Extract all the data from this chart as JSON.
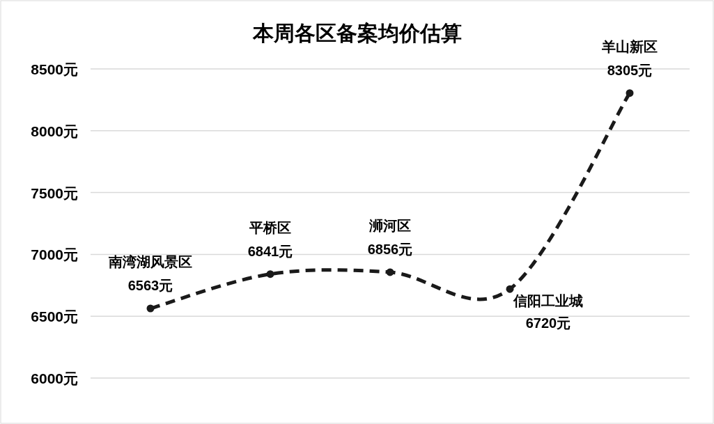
{
  "chart_data": {
    "type": "line",
    "title": "本周各区备案均价估算",
    "categories": [
      "南湾湖风景区",
      "平桥区",
      "浉河区",
      "信阳工业城",
      "羊山新区"
    ],
    "series": [
      {
        "color": "#1a1a1a",
        "values": [
          6563,
          6841,
          6856,
          6720,
          8305
        ],
        "value_labels": [
          "6563元",
          "6841元",
          "6856元",
          "6720元",
          "8305元"
        ]
      }
    ],
    "ylim": [
      6000,
      8500
    ],
    "yticks": [
      {
        "value": 6000,
        "label": "6000元"
      },
      {
        "value": 6500,
        "label": "6500元"
      },
      {
        "value": 7000,
        "label": "7000元"
      },
      {
        "value": 7500,
        "label": "7500元"
      },
      {
        "value": 8000,
        "label": "8000元"
      },
      {
        "value": 8500,
        "label": "8500元"
      }
    ],
    "grid": "y",
    "marker": "circle",
    "line_style": "dashed",
    "tick_labels": "y"
  }
}
